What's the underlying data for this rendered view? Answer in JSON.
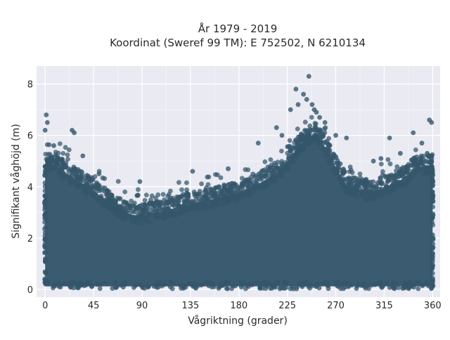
{
  "chart_data": {
    "type": "scatter",
    "title_lines": [
      "År 1979 - 2019",
      "Koordinat (Sweref 99 TM): E 752502, N 6210134"
    ],
    "xlabel": "Vågriktning (grader)",
    "ylabel": "Signifikant våghöjd (m)",
    "xlim": [
      -8,
      367
    ],
    "ylim": [
      -0.3,
      8.7
    ],
    "xticks": [
      0,
      45,
      90,
      135,
      180,
      225,
      270,
      315,
      360
    ],
    "yticks": [
      0,
      2,
      4,
      6,
      8
    ],
    "grid": true,
    "marker_color": "#34566b",
    "plot_background": "#e9eaf2",
    "envelope": {
      "x": [
        0,
        5,
        15,
        30,
        45,
        60,
        75,
        90,
        110,
        135,
        160,
        180,
        200,
        215,
        225,
        235,
        245,
        252,
        260,
        270,
        280,
        300,
        315,
        330,
        345,
        360
      ],
      "upper": [
        4.9,
        5.0,
        4.7,
        4.3,
        3.9,
        3.4,
        3.0,
        2.9,
        3.1,
        3.4,
        3.6,
        3.8,
        4.2,
        4.6,
        5.0,
        5.6,
        6.0,
        6.1,
        5.6,
        4.8,
        4.1,
        3.8,
        4.0,
        4.3,
        4.8,
        4.9
      ]
    },
    "outliers": [
      {
        "x": 1,
        "y": 6.8
      },
      {
        "x": 0,
        "y": 6.2
      },
      {
        "x": 2,
        "y": 6.5
      },
      {
        "x": 25,
        "y": 6.2
      },
      {
        "x": 27,
        "y": 6.1
      },
      {
        "x": 8,
        "y": 5.6
      },
      {
        "x": 35,
        "y": 5.2
      },
      {
        "x": 50,
        "y": 4.5
      },
      {
        "x": 88,
        "y": 4.2
      },
      {
        "x": 137,
        "y": 4.6
      },
      {
        "x": 170,
        "y": 4.7
      },
      {
        "x": 198,
        "y": 5.7
      },
      {
        "x": 215,
        "y": 6.3
      },
      {
        "x": 220,
        "y": 6.0
      },
      {
        "x": 233,
        "y": 7.8
      },
      {
        "x": 235,
        "y": 7.2
      },
      {
        "x": 240,
        "y": 7.6
      },
      {
        "x": 245,
        "y": 8.3
      },
      {
        "x": 243,
        "y": 7.4
      },
      {
        "x": 248,
        "y": 7.2
      },
      {
        "x": 250,
        "y": 7.0
      },
      {
        "x": 252,
        "y": 6.9
      },
      {
        "x": 255,
        "y": 6.7
      },
      {
        "x": 260,
        "y": 6.5
      },
      {
        "x": 228,
        "y": 7.0
      },
      {
        "x": 270,
        "y": 6.0
      },
      {
        "x": 280,
        "y": 5.9
      },
      {
        "x": 305,
        "y": 5.0
      },
      {
        "x": 320,
        "y": 5.9
      },
      {
        "x": 330,
        "y": 5.3
      },
      {
        "x": 342,
        "y": 6.1
      },
      {
        "x": 350,
        "y": 5.7
      },
      {
        "x": 357,
        "y": 6.6
      },
      {
        "x": 359,
        "y": 6.5
      },
      {
        "x": 355,
        "y": 5.3
      },
      {
        "x": 312,
        "y": 5.1
      }
    ]
  }
}
